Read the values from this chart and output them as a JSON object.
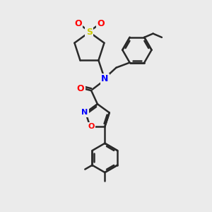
{
  "bg_color": "#ebebeb",
  "bond_color": "#2a2a2a",
  "bond_width": 1.8,
  "S_color": "#cccc00",
  "N_color": "#0000ff",
  "O_color": "#ff0000",
  "figsize": [
    3.0,
    3.0
  ],
  "dpi": 100,
  "xlim": [
    0,
    10
  ],
  "ylim": [
    0,
    10
  ]
}
